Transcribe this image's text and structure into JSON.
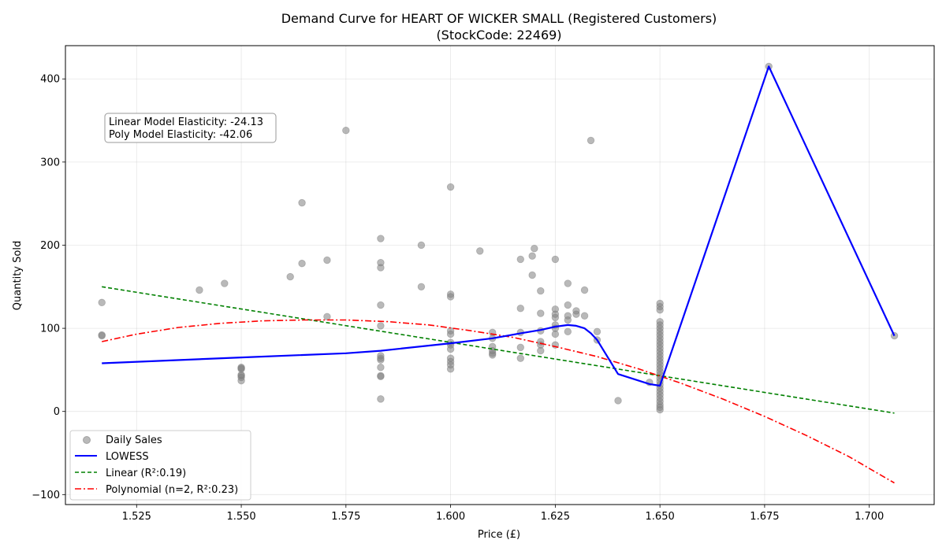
{
  "chart_data": {
    "type": "scatter",
    "title": [
      "Demand Curve for HEART OF WICKER SMALL (Registered Customers)",
      "(StockCode: 22469)"
    ],
    "xlabel": "Price (£)",
    "ylabel": "Quantity Sold",
    "xlim": [
      1.508,
      1.7155
    ],
    "ylim": [
      -112,
      440
    ],
    "xticks": [
      1.525,
      1.55,
      1.575,
      1.6,
      1.625,
      1.65,
      1.675,
      1.7
    ],
    "xtick_labels": [
      "1.525",
      "1.550",
      "1.575",
      "1.600",
      "1.625",
      "1.650",
      "1.675",
      "1.700"
    ],
    "yticks": [
      -100,
      0,
      100,
      200,
      300,
      400
    ],
    "ytick_labels": [
      "−100",
      "0",
      "100",
      "200",
      "300",
      "400"
    ],
    "grid": true,
    "legend_position": "lower left",
    "annotation": [
      "Linear Model Elasticity: -24.13",
      "Poly Model Elasticity: -42.06"
    ],
    "colors": {
      "scatter": "#808080",
      "lowess": "#0000ff",
      "linear": "#008000",
      "poly": "#ff0000"
    },
    "series": [
      {
        "name": "Daily Sales",
        "kind": "scatter",
        "points": [
          [
            1.5167,
            131
          ],
          [
            1.5167,
            92
          ],
          [
            1.5167,
            91
          ],
          [
            1.54,
            146
          ],
          [
            1.546,
            154
          ],
          [
            1.55,
            53
          ],
          [
            1.55,
            52
          ],
          [
            1.55,
            51
          ],
          [
            1.55,
            44
          ],
          [
            1.55,
            43
          ],
          [
            1.55,
            41
          ],
          [
            1.55,
            37
          ],
          [
            1.5617,
            162
          ],
          [
            1.5645,
            251
          ],
          [
            1.5645,
            178
          ],
          [
            1.5705,
            182
          ],
          [
            1.5705,
            114
          ],
          [
            1.575,
            338
          ],
          [
            1.5833,
            208
          ],
          [
            1.5833,
            179
          ],
          [
            1.5833,
            173
          ],
          [
            1.5833,
            128
          ],
          [
            1.5833,
            103
          ],
          [
            1.5833,
            67
          ],
          [
            1.5833,
            64
          ],
          [
            1.5833,
            62
          ],
          [
            1.5833,
            53
          ],
          [
            1.5833,
            43
          ],
          [
            1.5833,
            42
          ],
          [
            1.5833,
            15
          ],
          [
            1.593,
            200
          ],
          [
            1.593,
            150
          ],
          [
            1.6,
            270
          ],
          [
            1.6,
            141
          ],
          [
            1.6,
            138
          ],
          [
            1.6,
            97
          ],
          [
            1.6,
            93
          ],
          [
            1.6,
            83
          ],
          [
            1.6,
            80
          ],
          [
            1.6,
            75
          ],
          [
            1.6,
            64
          ],
          [
            1.6,
            60
          ],
          [
            1.6,
            56
          ],
          [
            1.6,
            51
          ],
          [
            1.607,
            193
          ],
          [
            1.61,
            95
          ],
          [
            1.61,
            88
          ],
          [
            1.61,
            78
          ],
          [
            1.61,
            73
          ],
          [
            1.61,
            70
          ],
          [
            1.61,
            68
          ],
          [
            1.6167,
            183
          ],
          [
            1.6167,
            124
          ],
          [
            1.6167,
            95
          ],
          [
            1.6167,
            77
          ],
          [
            1.6167,
            64
          ],
          [
            1.6195,
            187
          ],
          [
            1.6195,
            164
          ],
          [
            1.62,
            196
          ],
          [
            1.6215,
            145
          ],
          [
            1.6215,
            118
          ],
          [
            1.6215,
            97
          ],
          [
            1.6215,
            84
          ],
          [
            1.6215,
            80
          ],
          [
            1.6215,
            73
          ],
          [
            1.625,
            183
          ],
          [
            1.625,
            123
          ],
          [
            1.625,
            117
          ],
          [
            1.625,
            113
          ],
          [
            1.625,
            104
          ],
          [
            1.625,
            100
          ],
          [
            1.625,
            93
          ],
          [
            1.625,
            80
          ],
          [
            1.628,
            154
          ],
          [
            1.628,
            128
          ],
          [
            1.628,
            115
          ],
          [
            1.628,
            110
          ],
          [
            1.628,
            96
          ],
          [
            1.63,
            121
          ],
          [
            1.63,
            117
          ],
          [
            1.632,
            146
          ],
          [
            1.632,
            115
          ],
          [
            1.6335,
            326
          ],
          [
            1.635,
            96
          ],
          [
            1.635,
            86
          ],
          [
            1.64,
            13
          ],
          [
            1.6475,
            35
          ],
          [
            1.65,
            130
          ],
          [
            1.65,
            126
          ],
          [
            1.65,
            122
          ],
          [
            1.65,
            108
          ],
          [
            1.65,
            104
          ],
          [
            1.65,
            100
          ],
          [
            1.65,
            96
          ],
          [
            1.65,
            92
          ],
          [
            1.65,
            88
          ],
          [
            1.65,
            84
          ],
          [
            1.65,
            80
          ],
          [
            1.65,
            76
          ],
          [
            1.65,
            72
          ],
          [
            1.65,
            68
          ],
          [
            1.65,
            64
          ],
          [
            1.65,
            60
          ],
          [
            1.65,
            56
          ],
          [
            1.65,
            52
          ],
          [
            1.65,
            48
          ],
          [
            1.65,
            44
          ],
          [
            1.65,
            40
          ],
          [
            1.65,
            36
          ],
          [
            1.65,
            32
          ],
          [
            1.65,
            28
          ],
          [
            1.65,
            24
          ],
          [
            1.65,
            20
          ],
          [
            1.65,
            16
          ],
          [
            1.65,
            12
          ],
          [
            1.65,
            8
          ],
          [
            1.65,
            5
          ],
          [
            1.65,
            2
          ],
          [
            1.676,
            415
          ],
          [
            1.706,
            91
          ]
        ]
      },
      {
        "name": "LOWESS",
        "kind": "line",
        "points": [
          [
            1.5167,
            58
          ],
          [
            1.55,
            65
          ],
          [
            1.575,
            70
          ],
          [
            1.5833,
            73
          ],
          [
            1.6,
            82
          ],
          [
            1.61,
            88
          ],
          [
            1.6167,
            94
          ],
          [
            1.6215,
            98
          ],
          [
            1.625,
            102
          ],
          [
            1.628,
            104
          ],
          [
            1.63,
            103
          ],
          [
            1.632,
            100
          ],
          [
            1.6335,
            94
          ],
          [
            1.635,
            86
          ],
          [
            1.64,
            45
          ],
          [
            1.6475,
            33
          ],
          [
            1.65,
            31
          ],
          [
            1.676,
            415
          ],
          [
            1.706,
            91
          ]
        ]
      },
      {
        "name": "Linear (R²:0.19)",
        "kind": "line",
        "dash": "dashed",
        "points": [
          [
            1.5167,
            150
          ],
          [
            1.706,
            -2
          ]
        ]
      },
      {
        "name": "Polynomial (n=2, R²:0.23)",
        "kind": "line",
        "dash": "dashdot",
        "points": [
          [
            1.5167,
            84
          ],
          [
            1.525,
            93
          ],
          [
            1.535,
            101
          ],
          [
            1.545,
            106
          ],
          [
            1.555,
            109
          ],
          [
            1.565,
            110
          ],
          [
            1.575,
            110
          ],
          [
            1.585,
            108
          ],
          [
            1.595,
            104
          ],
          [
            1.605,
            97
          ],
          [
            1.615,
            89
          ],
          [
            1.625,
            78
          ],
          [
            1.635,
            66
          ],
          [
            1.645,
            51
          ],
          [
            1.655,
            34
          ],
          [
            1.665,
            15
          ],
          [
            1.675,
            -6
          ],
          [
            1.685,
            -29
          ],
          [
            1.695,
            -54
          ],
          [
            1.706,
            -86
          ]
        ]
      }
    ]
  }
}
